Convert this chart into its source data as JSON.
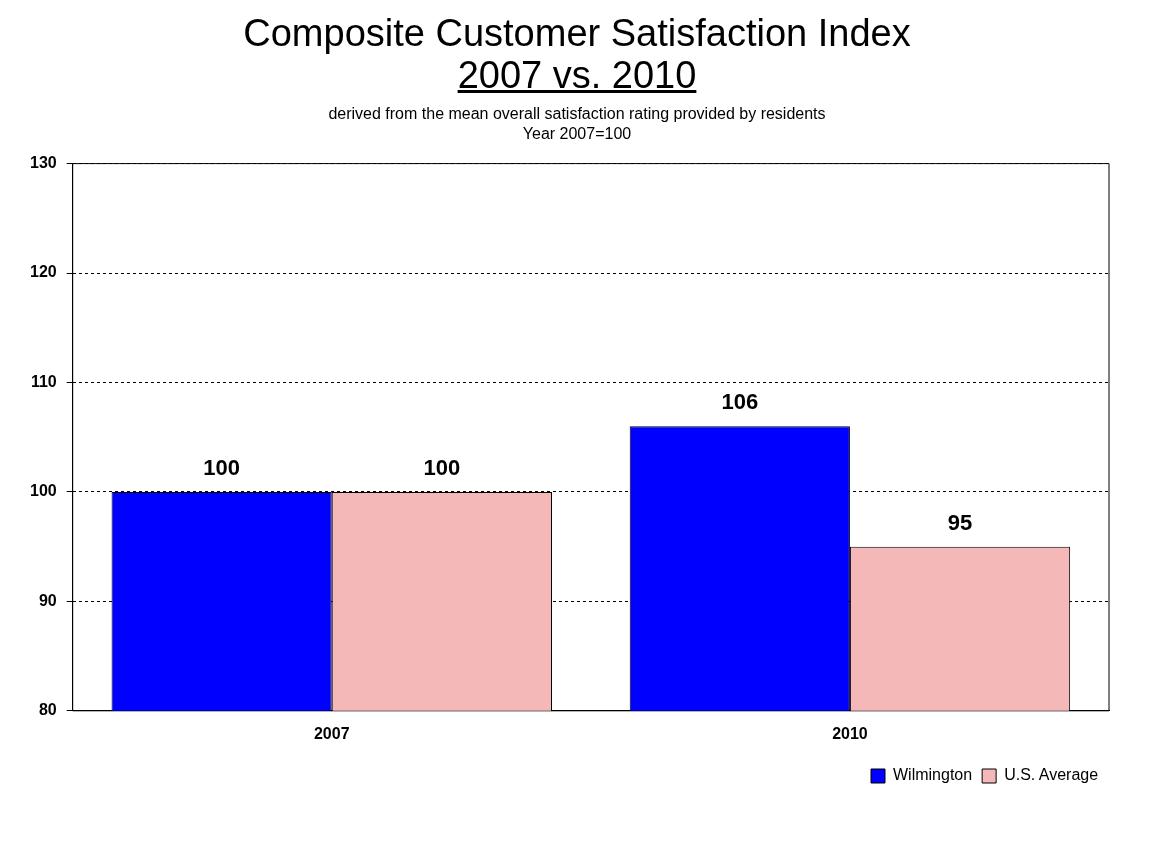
{
  "chart_data": {
    "type": "bar",
    "title": "Composite Customer Satisfaction Index\n2007 vs. 2010",
    "subtitle": "derived from the mean overall satisfaction rating provided by residents\nYear 2007=100",
    "categories": [
      "2007",
      "2010"
    ],
    "series": [
      {
        "name": "Wilmington",
        "color": "#0000ff",
        "values": [
          100,
          106
        ]
      },
      {
        "name": "U.S. Average",
        "color": "#f4b8b8",
        "values": [
          100,
          95
        ]
      }
    ],
    "ylim": [
      80,
      130
    ],
    "yticks": [
      80,
      90,
      100,
      110,
      120,
      130
    ],
    "grid": "y",
    "line_style": "dashed",
    "legend": "bottom right",
    "data_labels": true
  }
}
